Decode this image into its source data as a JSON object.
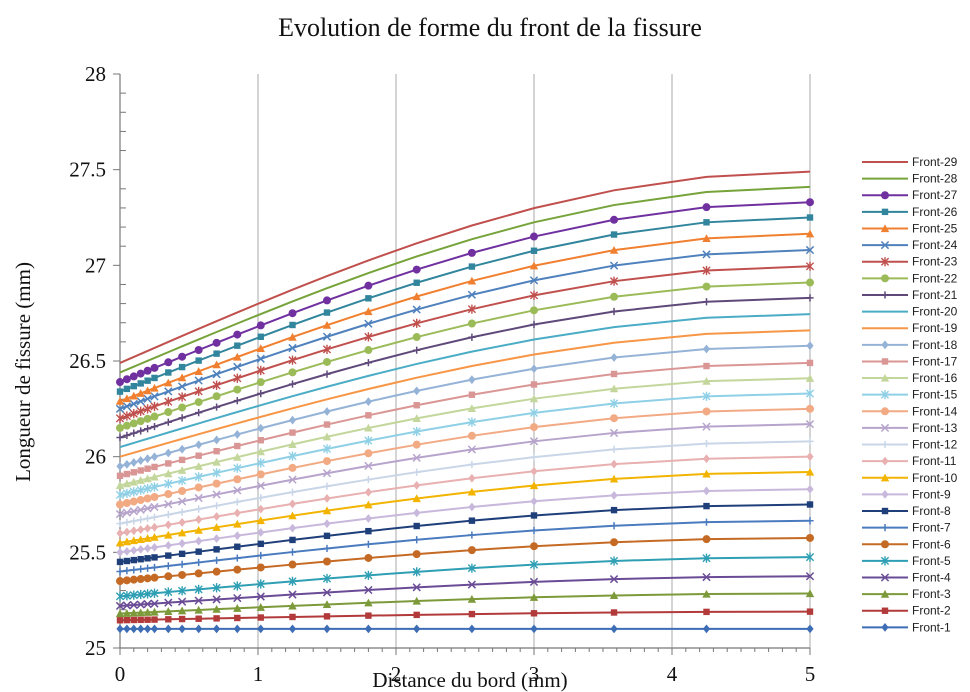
{
  "chart_data": {
    "type": "line",
    "title": "Evolution de forme du front de la fissure",
    "xlabel": "Distance du bord (mm)",
    "ylabel": "Longueur de fissure (mm)",
    "xlim": [
      0,
      5
    ],
    "ylim": [
      25,
      28
    ],
    "xticks": [
      "0",
      "1",
      "2",
      "3",
      "4",
      "5"
    ],
    "yticks": [
      "25",
      "25.5",
      "26",
      "26.5",
      "27",
      "27.5",
      "28"
    ],
    "grid": "vertical",
    "legend": "right",
    "x": [
      0,
      0.05,
      0.1,
      0.15,
      0.2,
      0.25,
      0.35,
      0.45,
      0.57,
      0.7,
      0.85,
      1.02,
      1.25,
      1.5,
      1.8,
      2.15,
      2.55,
      3.0,
      3.58,
      4.25,
      5.0
    ],
    "series": [
      {
        "name": "Front-1",
        "color": "#3d6db5",
        "marker": "diamond",
        "start": 25.1,
        "end": 25.1
      },
      {
        "name": "Front-2",
        "color": "#b23a3a",
        "marker": "square",
        "start": 25.145,
        "end": 25.19
      },
      {
        "name": "Front-3",
        "color": "#7c9a3a",
        "marker": "triangle",
        "start": 25.18,
        "end": 25.285
      },
      {
        "name": "Front-4",
        "color": "#6a4b96",
        "marker": "x",
        "start": 25.22,
        "end": 25.375
      },
      {
        "name": "Front-5",
        "color": "#2f9fb4",
        "marker": "star",
        "start": 25.27,
        "end": 25.475
      },
      {
        "name": "Front-6",
        "color": "#c56a24",
        "marker": "circle",
        "start": 25.35,
        "end": 25.575
      },
      {
        "name": "Front-7",
        "color": "#4a7bbf",
        "marker": "plus",
        "start": 25.4,
        "end": 25.665
      },
      {
        "name": "Front-8",
        "color": "#1f3f7a",
        "marker": "square",
        "start": 25.45,
        "end": 25.75
      },
      {
        "name": "Front-9",
        "color": "#c8b8dc",
        "marker": "diamond",
        "start": 25.5,
        "end": 25.83
      },
      {
        "name": "Front-10",
        "color": "#f2b400",
        "marker": "triangle",
        "start": 25.55,
        "end": 25.92
      },
      {
        "name": "Front-11",
        "color": "#e8b0b0",
        "marker": "diamond",
        "start": 25.6,
        "end": 26.0
      },
      {
        "name": "Front-12",
        "color": "#c9d6e8",
        "marker": "plus",
        "start": 25.65,
        "end": 26.08
      },
      {
        "name": "Front-13",
        "color": "#b7a4cc",
        "marker": "x",
        "start": 25.7,
        "end": 26.17
      },
      {
        "name": "Front-14",
        "color": "#f2aa84",
        "marker": "circle",
        "start": 25.75,
        "end": 26.25
      },
      {
        "name": "Front-15",
        "color": "#8fd0e6",
        "marker": "star",
        "start": 25.8,
        "end": 26.33
      },
      {
        "name": "Front-16",
        "color": "#c3d69b",
        "marker": "triangle",
        "start": 25.85,
        "end": 26.41
      },
      {
        "name": "Front-17",
        "color": "#d99694",
        "marker": "square",
        "start": 25.9,
        "end": 26.49
      },
      {
        "name": "Front-18",
        "color": "#95b3d7",
        "marker": "diamond",
        "start": 25.95,
        "end": 26.58
      },
      {
        "name": "Front-19",
        "color": "#f79646",
        "marker": "none",
        "start": 26.0,
        "end": 26.66
      },
      {
        "name": "Front-20",
        "color": "#4bacc6",
        "marker": "none",
        "start": 26.05,
        "end": 26.745
      },
      {
        "name": "Front-21",
        "color": "#5f497a",
        "marker": "plus",
        "start": 26.1,
        "end": 26.83
      },
      {
        "name": "Front-22",
        "color": "#9bbb59",
        "marker": "circle",
        "start": 26.15,
        "end": 26.91
      },
      {
        "name": "Front-23",
        "color": "#c0504d",
        "marker": "star",
        "start": 26.2,
        "end": 26.995
      },
      {
        "name": "Front-24",
        "color": "#4f81bd",
        "marker": "x",
        "start": 26.25,
        "end": 27.08
      },
      {
        "name": "Front-25",
        "color": "#f08030",
        "marker": "triangle",
        "start": 26.29,
        "end": 27.165
      },
      {
        "name": "Front-26",
        "color": "#31859c",
        "marker": "square",
        "start": 26.34,
        "end": 27.25
      },
      {
        "name": "Front-27",
        "color": "#7030a0",
        "marker": "circle",
        "start": 26.39,
        "end": 27.33
      },
      {
        "name": "Front-28",
        "color": "#76a33a",
        "marker": "none",
        "start": 26.44,
        "end": 27.41
      },
      {
        "name": "Front-29",
        "color": "#c0504d",
        "marker": "none",
        "start": 26.49,
        "end": 27.49
      }
    ]
  }
}
